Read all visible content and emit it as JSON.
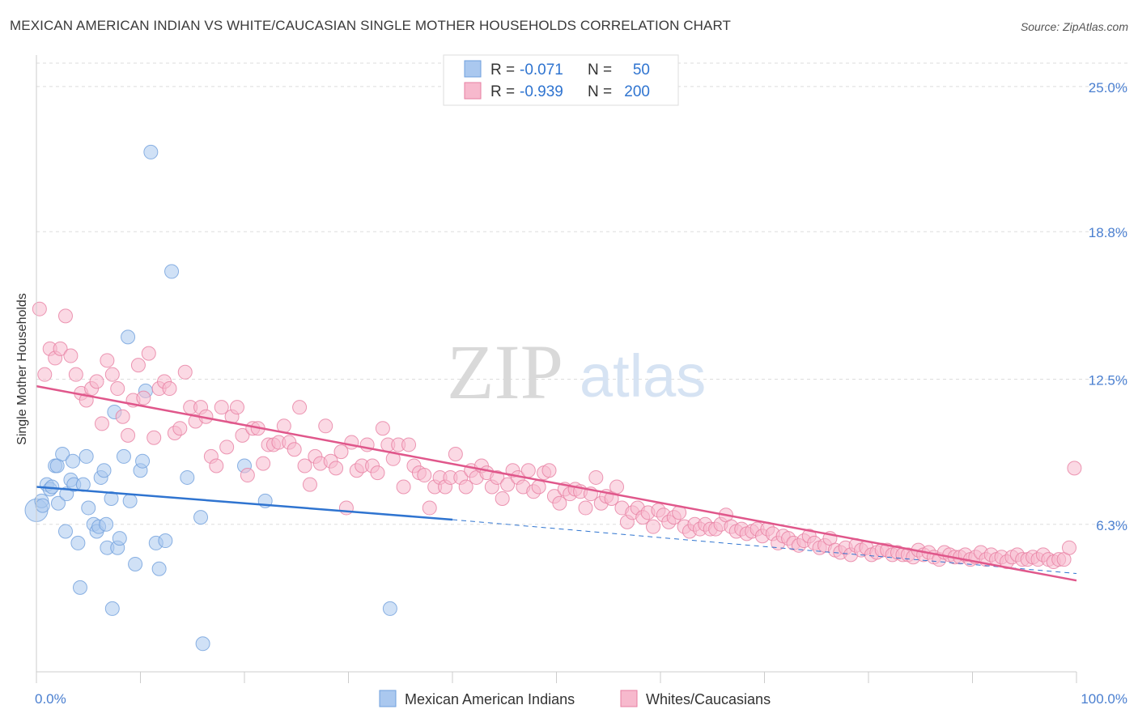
{
  "title": "MEXICAN AMERICAN INDIAN VS WHITE/CAUCASIAN SINGLE MOTHER HOUSEHOLDS CORRELATION CHART",
  "source": "Source: ZipAtlas.com",
  "colors": {
    "blue": "#6f9fdc",
    "blue_fill": "#aac8ef",
    "blue_line": "#2f74d0",
    "pink": "#e77ea1",
    "pink_fill": "#f7b9cd",
    "pink_line": "#e0578b",
    "axis_text": "#4a7fd0",
    "grid": "#dddddd"
  },
  "legend_top": [
    {
      "series": "Mexican American Indians",
      "r_label": "R =",
      "r_value": "-0.071",
      "n_label": "N =",
      "n_value": "50"
    },
    {
      "series": "Whites/Caucasians",
      "r_label": "R =",
      "r_value": "-0.939",
      "n_label": "N =",
      "n_value": "200"
    }
  ],
  "watermark": {
    "zip": "ZIP",
    "atlas": "atlas"
  },
  "chart_data": {
    "type": "scatter",
    "title": "MEXICAN AMERICAN INDIAN VS WHITE/CAUCASIAN SINGLE MOTHER HOUSEHOLDS CORRELATION CHART",
    "xlabel": "",
    "ylabel": "Single Mother Households",
    "xlim": [
      0,
      100
    ],
    "ylim": [
      0,
      26
    ],
    "x_tick_labels": [
      "0.0%",
      "100.0%"
    ],
    "y_ticks": [
      6.3,
      12.5,
      18.8,
      25.0
    ],
    "y_tick_labels": [
      "6.3%",
      "12.5%",
      "18.8%",
      "25.0%"
    ],
    "legend": [
      "Mexican American Indians",
      "Whites/Caucasians"
    ],
    "series": [
      {
        "name": "Mexican American Indians",
        "color": "#6f9fdc",
        "trend": {
          "x": [
            0,
            40
          ],
          "y": [
            7.9,
            6.5
          ],
          "dashed_to": [
            100,
            4.2
          ]
        },
        "points": [
          [
            0,
            6.9
          ],
          [
            0.5,
            7.3
          ],
          [
            0.6,
            7.1
          ],
          [
            1,
            8.0
          ],
          [
            1.3,
            7.8
          ],
          [
            1.5,
            7.9
          ],
          [
            1.8,
            8.8
          ],
          [
            2,
            8.8
          ],
          [
            2.1,
            7.2
          ],
          [
            2.5,
            9.3
          ],
          [
            2.8,
            6.0
          ],
          [
            2.9,
            7.6
          ],
          [
            3.3,
            8.2
          ],
          [
            3.5,
            9.0
          ],
          [
            3.6,
            8.0
          ],
          [
            4,
            5.5
          ],
          [
            4.2,
            3.6
          ],
          [
            4.5,
            8.0
          ],
          [
            4.8,
            9.2
          ],
          [
            5,
            7.0
          ],
          [
            5.5,
            6.3
          ],
          [
            5.8,
            6.0
          ],
          [
            6,
            6.2
          ],
          [
            6.2,
            8.3
          ],
          [
            6.5,
            8.6
          ],
          [
            6.7,
            6.3
          ],
          [
            6.8,
            5.3
          ],
          [
            7.2,
            7.4
          ],
          [
            7.3,
            2.7
          ],
          [
            7.5,
            11.1
          ],
          [
            7.8,
            5.3
          ],
          [
            8,
            5.7
          ],
          [
            8.4,
            9.2
          ],
          [
            8.8,
            14.3
          ],
          [
            9,
            7.3
          ],
          [
            9.5,
            4.6
          ],
          [
            10,
            8.6
          ],
          [
            10.2,
            9.0
          ],
          [
            10.5,
            12.0
          ],
          [
            11,
            22.2
          ],
          [
            11.5,
            5.5
          ],
          [
            11.8,
            4.4
          ],
          [
            12.4,
            5.6
          ],
          [
            13,
            17.1
          ],
          [
            14.5,
            8.3
          ],
          [
            15.8,
            6.6
          ],
          [
            16,
            1.2
          ],
          [
            20,
            8.8
          ],
          [
            22,
            7.3
          ],
          [
            34,
            2.7
          ]
        ]
      },
      {
        "name": "Whites/Caucasians",
        "color": "#e77ea1",
        "trend": {
          "x": [
            0,
            100
          ],
          "y": [
            12.2,
            3.9
          ]
        },
        "points": [
          [
            0.3,
            15.5
          ],
          [
            0.8,
            12.7
          ],
          [
            1.3,
            13.8
          ],
          [
            1.8,
            13.4
          ],
          [
            2.3,
            13.8
          ],
          [
            2.8,
            15.2
          ],
          [
            3.3,
            13.5
          ],
          [
            3.8,
            12.7
          ],
          [
            4.3,
            11.9
          ],
          [
            4.8,
            11.6
          ],
          [
            5.3,
            12.1
          ],
          [
            5.8,
            12.4
          ],
          [
            6.3,
            10.6
          ],
          [
            6.8,
            13.3
          ],
          [
            7.3,
            12.7
          ],
          [
            7.8,
            12.1
          ],
          [
            8.3,
            10.9
          ],
          [
            8.8,
            10.1
          ],
          [
            9.3,
            11.6
          ],
          [
            9.8,
            13.1
          ],
          [
            10.3,
            11.7
          ],
          [
            10.8,
            13.6
          ],
          [
            11.3,
            10.0
          ],
          [
            11.8,
            12.1
          ],
          [
            12.3,
            12.4
          ],
          [
            12.8,
            12.1
          ],
          [
            13.3,
            10.2
          ],
          [
            13.8,
            10.4
          ],
          [
            14.3,
            12.8
          ],
          [
            14.8,
            11.3
          ],
          [
            15.3,
            10.7
          ],
          [
            15.8,
            11.3
          ],
          [
            16.3,
            10.9
          ],
          [
            16.8,
            9.2
          ],
          [
            17.3,
            8.8
          ],
          [
            17.8,
            11.3
          ],
          [
            18.3,
            9.6
          ],
          [
            18.8,
            10.9
          ],
          [
            19.3,
            11.3
          ],
          [
            19.8,
            10.1
          ],
          [
            20.3,
            8.4
          ],
          [
            20.8,
            10.4
          ],
          [
            21.3,
            10.4
          ],
          [
            21.8,
            8.9
          ],
          [
            22.3,
            9.7
          ],
          [
            22.8,
            9.7
          ],
          [
            23.3,
            9.8
          ],
          [
            23.8,
            10.5
          ],
          [
            24.3,
            9.8
          ],
          [
            24.8,
            9.5
          ],
          [
            25.3,
            11.3
          ],
          [
            25.8,
            8.8
          ],
          [
            26.3,
            8.0
          ],
          [
            26.8,
            9.2
          ],
          [
            27.3,
            8.9
          ],
          [
            27.8,
            10.5
          ],
          [
            28.3,
            9.0
          ],
          [
            28.8,
            8.7
          ],
          [
            29.3,
            9.4
          ],
          [
            29.8,
            7.0
          ],
          [
            30.3,
            9.8
          ],
          [
            30.8,
            8.6
          ],
          [
            31.3,
            8.8
          ],
          [
            31.8,
            9.7
          ],
          [
            32.3,
            8.8
          ],
          [
            32.8,
            8.5
          ],
          [
            33.3,
            10.4
          ],
          [
            33.8,
            9.7
          ],
          [
            34.3,
            9.1
          ],
          [
            34.8,
            9.7
          ],
          [
            35.3,
            7.9
          ],
          [
            35.8,
            9.7
          ],
          [
            36.3,
            8.8
          ],
          [
            36.8,
            8.5
          ],
          [
            37.3,
            8.4
          ],
          [
            37.8,
            7.0
          ],
          [
            38.3,
            7.9
          ],
          [
            38.8,
            8.3
          ],
          [
            39.3,
            7.9
          ],
          [
            39.8,
            8.3
          ],
          [
            40.3,
            9.3
          ],
          [
            40.8,
            8.3
          ],
          [
            41.3,
            7.9
          ],
          [
            41.8,
            8.6
          ],
          [
            42.3,
            8.3
          ],
          [
            42.8,
            8.8
          ],
          [
            43.3,
            8.5
          ],
          [
            43.8,
            7.9
          ],
          [
            44.3,
            8.3
          ],
          [
            44.8,
            7.4
          ],
          [
            45.3,
            8.0
          ],
          [
            45.8,
            8.6
          ],
          [
            46.3,
            8.3
          ],
          [
            46.8,
            7.9
          ],
          [
            47.3,
            8.6
          ],
          [
            47.8,
            7.7
          ],
          [
            48.3,
            7.9
          ],
          [
            48.8,
            8.5
          ],
          [
            49.3,
            8.6
          ],
          [
            49.8,
            7.5
          ],
          [
            50.3,
            7.2
          ],
          [
            50.8,
            7.8
          ],
          [
            51.3,
            7.6
          ],
          [
            51.8,
            7.8
          ],
          [
            52.3,
            7.7
          ],
          [
            52.8,
            7.0
          ],
          [
            53.3,
            7.6
          ],
          [
            53.8,
            8.3
          ],
          [
            54.3,
            7.2
          ],
          [
            54.8,
            7.5
          ],
          [
            55.3,
            7.4
          ],
          [
            55.8,
            7.9
          ],
          [
            56.3,
            7.0
          ],
          [
            56.8,
            6.4
          ],
          [
            57.3,
            6.8
          ],
          [
            57.8,
            7.0
          ],
          [
            58.3,
            6.6
          ],
          [
            58.8,
            6.8
          ],
          [
            59.3,
            6.2
          ],
          [
            59.8,
            6.9
          ],
          [
            60.3,
            6.7
          ],
          [
            60.8,
            6.4
          ],
          [
            61.3,
            6.6
          ],
          [
            61.8,
            6.8
          ],
          [
            62.3,
            6.2
          ],
          [
            62.8,
            6.0
          ],
          [
            63.3,
            6.3
          ],
          [
            63.8,
            6.1
          ],
          [
            64.3,
            6.3
          ],
          [
            64.8,
            6.1
          ],
          [
            65.3,
            6.1
          ],
          [
            65.8,
            6.3
          ],
          [
            66.3,
            6.7
          ],
          [
            66.8,
            6.2
          ],
          [
            67.3,
            6.0
          ],
          [
            67.8,
            6.1
          ],
          [
            68.3,
            5.9
          ],
          [
            68.8,
            6.0
          ],
          [
            69.3,
            6.1
          ],
          [
            69.8,
            5.8
          ],
          [
            70.3,
            6.1
          ],
          [
            70.8,
            5.9
          ],
          [
            71.3,
            5.5
          ],
          [
            71.8,
            5.8
          ],
          [
            72.3,
            5.7
          ],
          [
            72.8,
            5.5
          ],
          [
            73.3,
            5.4
          ],
          [
            73.8,
            5.6
          ],
          [
            74.3,
            5.8
          ],
          [
            74.8,
            5.5
          ],
          [
            75.3,
            5.3
          ],
          [
            75.8,
            5.4
          ],
          [
            76.3,
            5.7
          ],
          [
            76.8,
            5.2
          ],
          [
            77.3,
            5.1
          ],
          [
            77.8,
            5.3
          ],
          [
            78.3,
            5.0
          ],
          [
            78.8,
            5.4
          ],
          [
            79.3,
            5.2
          ],
          [
            79.8,
            5.3
          ],
          [
            80.3,
            5.0
          ],
          [
            80.8,
            5.1
          ],
          [
            81.3,
            5.2
          ],
          [
            81.8,
            5.2
          ],
          [
            82.3,
            5.0
          ],
          [
            82.8,
            5.1
          ],
          [
            83.3,
            5.0
          ],
          [
            83.8,
            5.0
          ],
          [
            84.3,
            4.9
          ],
          [
            84.8,
            5.2
          ],
          [
            85.3,
            5.0
          ],
          [
            85.8,
            5.1
          ],
          [
            86.3,
            4.9
          ],
          [
            86.8,
            4.8
          ],
          [
            87.3,
            5.1
          ],
          [
            87.8,
            5.0
          ],
          [
            88.3,
            4.9
          ],
          [
            88.8,
            4.9
          ],
          [
            89.3,
            5.0
          ],
          [
            89.8,
            4.8
          ],
          [
            90.3,
            4.9
          ],
          [
            90.8,
            5.1
          ],
          [
            91.3,
            4.8
          ],
          [
            91.8,
            5.0
          ],
          [
            92.3,
            4.8
          ],
          [
            92.8,
            4.9
          ],
          [
            93.3,
            4.7
          ],
          [
            93.8,
            4.9
          ],
          [
            94.3,
            5.0
          ],
          [
            94.8,
            4.8
          ],
          [
            95.3,
            4.8
          ],
          [
            95.8,
            4.9
          ],
          [
            96.3,
            4.8
          ],
          [
            96.8,
            5.0
          ],
          [
            97.3,
            4.8
          ],
          [
            97.8,
            4.7
          ],
          [
            98.3,
            4.8
          ],
          [
            98.8,
            4.8
          ],
          [
            99.3,
            5.3
          ],
          [
            99.8,
            8.7
          ]
        ]
      }
    ]
  }
}
